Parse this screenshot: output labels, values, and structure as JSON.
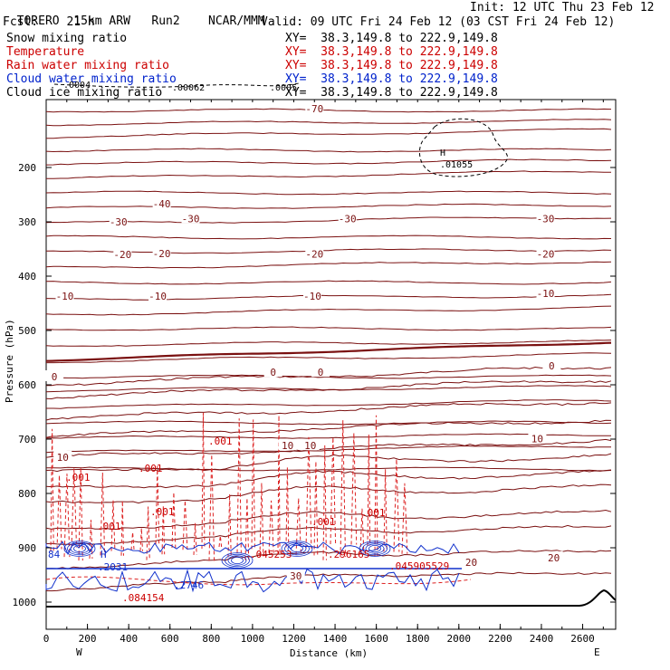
{
  "header": {
    "model": "TORERO",
    "resolution": "15km ARW",
    "run": "Run2",
    "org": "NCAR/MMM",
    "init": "Init: 12 UTC Thu 23 Feb 12",
    "fcst_label": "Fcst:",
    "fcst_value": "21 h",
    "valid": "Valid: 09 UTC Fri 24 Feb 12 (03 CST Fri 24 Feb 12)"
  },
  "fields": [
    {
      "name": "Snow mixing ratio",
      "xy": "XY=  38.3,149.8 to 222.9,149.8",
      "color": "#000000"
    },
    {
      "name": "Temperature",
      "xy": "XY=  38.3,149.8 to 222.9,149.8",
      "color": "#cc0000"
    },
    {
      "name": "Rain water mixing ratio",
      "xy": "XY=  38.3,149.8 to 222.9,149.8",
      "color": "#cc0000"
    },
    {
      "name": "Cloud water mixing ratio",
      "xy": "XY=  38.3,149.8 to 222.9,149.8",
      "color": "#0022cc"
    },
    {
      "name": "Cloud ice mixing ratio",
      "xy": "XY=  38.3,149.8 to 222.9,149.8",
      "color": "#000000"
    }
  ],
  "chart_data": {
    "type": "cross-section contour",
    "xlabel": "Distance (km)",
    "ylabel": "Pressure (hPa)",
    "xlim": [
      0,
      2760
    ],
    "ylim": [
      1050,
      75
    ],
    "x_ticks": [
      0,
      200,
      400,
      600,
      800,
      1000,
      1200,
      1400,
      1600,
      1800,
      2000,
      2200,
      2400,
      2600
    ],
    "y_ticks": [
      200,
      300,
      400,
      500,
      600,
      700,
      800,
      900,
      1000
    ],
    "x_end_labels": [
      "W",
      "E"
    ],
    "temperature_isotherms_C": [
      {
        "value": -70,
        "labels": [
          [
            1300,
            92
          ]
        ]
      },
      {
        "value": -40,
        "labels": [
          [
            560,
            267
          ]
        ]
      },
      {
        "value": -30,
        "labels": [
          [
            350,
            300
          ],
          [
            700,
            294
          ],
          [
            1460,
            294
          ],
          [
            2420,
            294
          ]
        ]
      },
      {
        "value": -20,
        "labels": [
          [
            370,
            360
          ],
          [
            560,
            358
          ],
          [
            1300,
            359
          ],
          [
            2420,
            359
          ]
        ]
      },
      {
        "value": -10,
        "labels": [
          [
            90,
            437
          ],
          [
            540,
            437
          ],
          [
            1290,
            437
          ],
          [
            2420,
            432
          ]
        ]
      },
      {
        "value": 0,
        "labels": [
          [
            40,
            585
          ],
          [
            1100,
            577
          ],
          [
            1330,
            577
          ],
          [
            2450,
            565
          ]
        ]
      },
      {
        "value": 10,
        "labels": [
          [
            80,
            733
          ],
          [
            1170,
            712
          ],
          [
            1280,
            712
          ],
          [
            2380,
            699
          ]
        ]
      },
      {
        "value": 20,
        "labels": [
          [
            2060,
            927
          ],
          [
            2460,
            918
          ]
        ]
      },
      {
        "value": 30,
        "labels": [
          [
            1210,
            952
          ]
        ]
      }
    ],
    "rain_water_labels": [
      ".001",
      ".001",
      ".001",
      ".001",
      ".001",
      ".001",
      ".001",
      ".045253",
      ".296165",
      ".045905529",
      ".084154"
    ],
    "cloud_water_labels": [
      "84",
      ".2031",
      ".2746",
      "H"
    ],
    "cloud_ice_labels": [
      ".0004",
      ".00062",
      ".0005",
      "H",
      ".01055"
    ]
  }
}
